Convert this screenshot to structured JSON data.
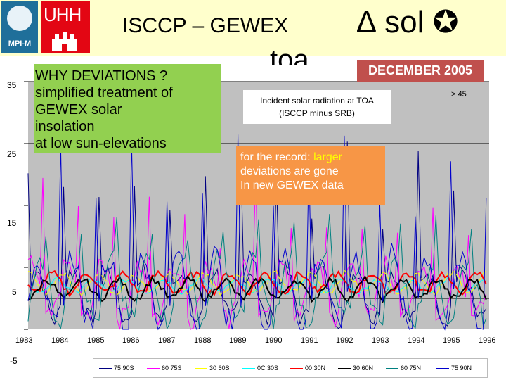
{
  "header": {
    "title": "ISCCP – GEWEX",
    "delta_sol": "∆ sol ✪",
    "toa": "toa",
    "date_badge": "DECEMBER 2005",
    "mpi_label": "MPI-M",
    "uhh_label": "UHH"
  },
  "why_box": {
    "lines": [
      "WHY DEVIATIONS ?",
      "simplified treatment of",
      "GEWEX solar",
      "insolation",
      "at low sun-elevations"
    ]
  },
  "record_box": {
    "prefix": "for the record:",
    "highlight": "larger",
    "line2": "deviations are gone",
    "line3": "In new GEWEX data"
  },
  "colors": {
    "top_bar": "#ffffcc",
    "why_box": "#92d050",
    "record_box": "#f79646",
    "badge": "#c0504d",
    "plot_bg": "#c0c0c0"
  },
  "chart_data": {
    "type": "line",
    "title": "Incident solar radiation at TOA",
    "subtitle": "(ISCCP minus SRB)",
    "annotation": "> 45",
    "xlabel": "",
    "ylabel": "",
    "xlim": [
      1983,
      1996
    ],
    "ylim": [
      -5,
      35
    ],
    "y_ticks": [
      35,
      25,
      15,
      5,
      -5
    ],
    "x_ticks": [
      1983,
      1984,
      1985,
      1986,
      1987,
      1988,
      1989,
      1990,
      1991,
      1992,
      1993,
      1994,
      1995,
      1996
    ],
    "x_tick_labels": [
      "1983",
      "1984",
      "1985",
      "1986",
      "1987",
      "1988",
      "1989",
      "1990",
      "1991",
      "1992",
      "1993",
      "1994",
      "1995",
      "1996"
    ],
    "reference_lines": [
      35,
      25,
      0
    ],
    "series": [
      {
        "name": "75 90S",
        "color": "#000080",
        "amplitude": 4.0,
        "spike_max": 26,
        "spike_period": 1.0,
        "base": 0.5
      },
      {
        "name": "60 75S",
        "color": "#ff00ff",
        "amplitude": 4.5,
        "spike_max": 20,
        "spike_period": 1.0,
        "base": 1.0
      },
      {
        "name": "30 60S",
        "color": "#ffff00",
        "amplitude": 1.5,
        "spike_max": 0,
        "spike_period": 1.0,
        "base": 2.5
      },
      {
        "name": "0C 30S",
        "color": "#00ffff",
        "amplitude": 1.0,
        "spike_max": 0,
        "spike_period": 1.0,
        "base": 2.0
      },
      {
        "name": "00 30N",
        "color": "#ff0000",
        "amplitude": 1.5,
        "spike_max": 0,
        "spike_period": 1.0,
        "base": 2.5
      },
      {
        "name": "30 60N",
        "color": "#000000",
        "amplitude": 1.5,
        "spike_max": 0,
        "spike_period": 1.0,
        "base": 1.5
      },
      {
        "name": "60 75N",
        "color": "#008080",
        "amplitude": 5.0,
        "spike_max": 10,
        "spike_period": 1.0,
        "base": 1.5
      },
      {
        "name": "75 90N",
        "color": "#0000cd",
        "amplitude": 6.0,
        "spike_max": 30,
        "spike_period": 1.0,
        "base": 1.0
      }
    ]
  }
}
